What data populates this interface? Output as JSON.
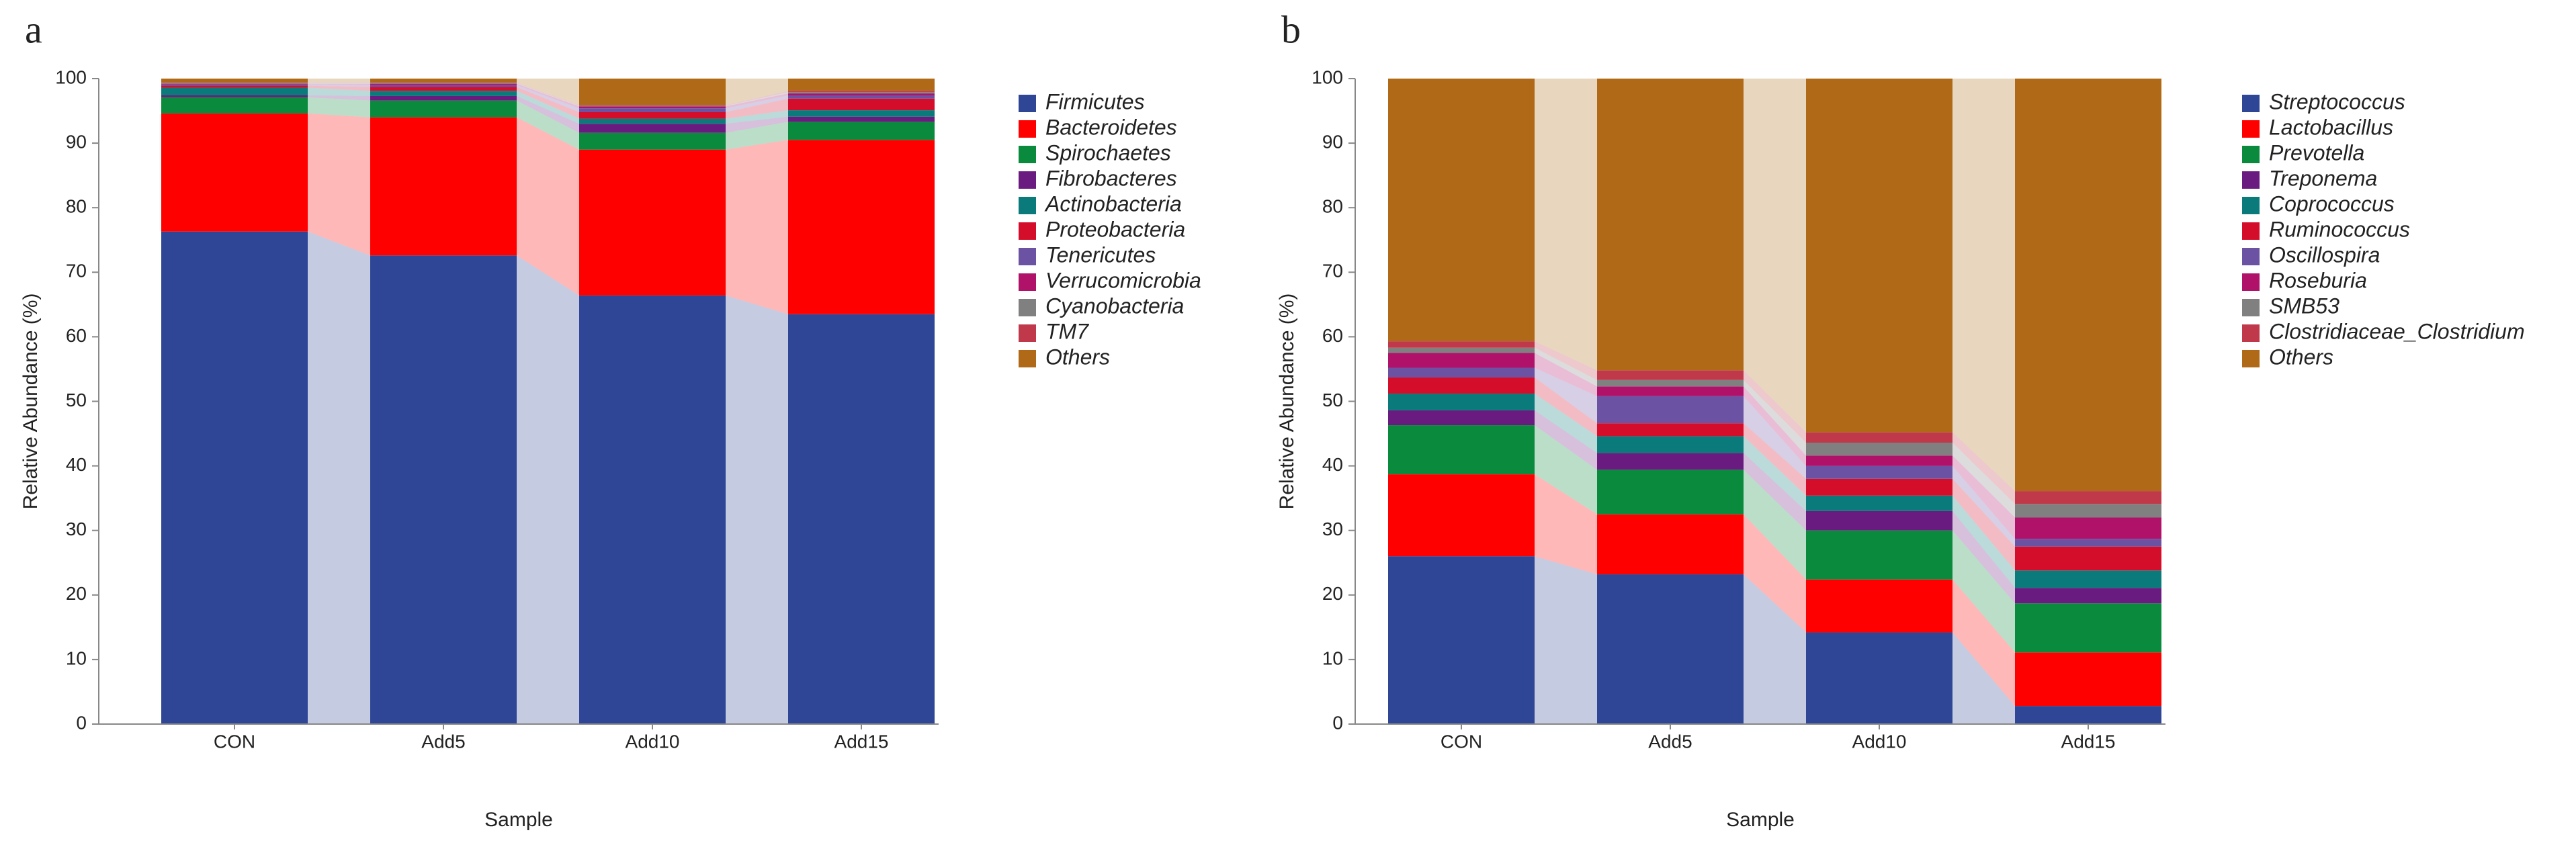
{
  "chart_data": [
    {
      "type": "stacked_bar_flow",
      "panel_label": "a",
      "xlabel": "Sample",
      "ylabel": "Relative Abundance (%)",
      "categories": [
        "CON",
        "Add5",
        "Add10",
        "Add15"
      ],
      "ylim": [
        0,
        100
      ],
      "yticks": [
        0,
        10,
        20,
        30,
        40,
        50,
        60,
        70,
        80,
        90,
        100
      ],
      "grid": false,
      "series": [
        {
          "name": "Firmicutes",
          "color": "#2e4695",
          "values": [
            76.3,
            72.6,
            66.4,
            63.5
          ]
        },
        {
          "name": "Bacteroidetes",
          "color": "#ff0000",
          "values": [
            18.3,
            21.4,
            22.6,
            27.0
          ]
        },
        {
          "name": "Spirochaetes",
          "color": "#0a8a3c",
          "values": [
            2.5,
            2.6,
            2.6,
            2.8
          ]
        },
        {
          "name": "Fibrobacteres",
          "color": "#6a1b7f",
          "values": [
            0.3,
            0.7,
            1.4,
            0.8
          ]
        },
        {
          "name": "Actinobacteria",
          "color": "#0a7a7a",
          "values": [
            1.2,
            0.8,
            0.8,
            1.0
          ]
        },
        {
          "name": "Proteobacteria",
          "color": "#d40d2a",
          "values": [
            0.3,
            0.6,
            1.0,
            1.8
          ]
        },
        {
          "name": "Tenericutes",
          "color": "#6b52a3",
          "values": [
            0.2,
            0.3,
            0.6,
            0.5
          ]
        },
        {
          "name": "Verrucomicrobia",
          "color": "#b0126a",
          "values": [
            0.1,
            0.2,
            0.3,
            0.3
          ]
        },
        {
          "name": "Cyanobacteria",
          "color": "#808080",
          "values": [
            0.1,
            0.1,
            0.1,
            0.2
          ]
        },
        {
          "name": "TM7",
          "color": "#c0394b",
          "values": [
            0.1,
            0.1,
            0.1,
            0.2
          ]
        },
        {
          "name": "Others",
          "color": "#b06a17",
          "values": [
            0.6,
            0.6,
            4.1,
            1.9
          ]
        }
      ]
    },
    {
      "type": "stacked_bar_flow",
      "panel_label": "b",
      "xlabel": "Sample",
      "ylabel": "Relative Abundance (%)",
      "categories": [
        "CON",
        "Add5",
        "Add10",
        "Add15"
      ],
      "ylim": [
        0,
        100
      ],
      "yticks": [
        0,
        10,
        20,
        30,
        40,
        50,
        60,
        70,
        80,
        90,
        100
      ],
      "grid": false,
      "series": [
        {
          "name": "Streptococcus",
          "color": "#2e4695",
          "values": [
            26.0,
            23.2,
            14.2,
            2.8
          ]
        },
        {
          "name": "Lactobacillus",
          "color": "#ff0000",
          "values": [
            12.7,
            9.3,
            8.2,
            8.3
          ]
        },
        {
          "name": "Prevotella",
          "color": "#0a8a3c",
          "values": [
            7.6,
            6.9,
            7.6,
            7.6
          ]
        },
        {
          "name": "Treponema",
          "color": "#6a1b7f",
          "values": [
            2.3,
            2.6,
            3.0,
            2.4
          ]
        },
        {
          "name": "Coprococcus",
          "color": "#0a7a7a",
          "values": [
            2.6,
            2.6,
            2.4,
            2.7
          ]
        },
        {
          "name": "Ruminococcus",
          "color": "#d40d2a",
          "values": [
            2.5,
            2.0,
            2.6,
            3.7
          ]
        },
        {
          "name": "Oscillospira",
          "color": "#6b52a3",
          "values": [
            1.5,
            4.2,
            2.0,
            1.2
          ]
        },
        {
          "name": "Roseburia",
          "color": "#b0126a",
          "values": [
            2.3,
            1.5,
            1.6,
            3.3
          ]
        },
        {
          "name": "SMB53",
          "color": "#808080",
          "values": [
            0.8,
            1.0,
            2.0,
            2.1
          ]
        },
        {
          "name": "Clostridiaceae_Clostridium",
          "color": "#c0394b",
          "values": [
            1.0,
            1.5,
            1.6,
            2.0
          ]
        },
        {
          "name": "Others",
          "color": "#b06a17",
          "values": [
            40.7,
            45.2,
            54.8,
            63.9
          ]
        }
      ]
    }
  ]
}
